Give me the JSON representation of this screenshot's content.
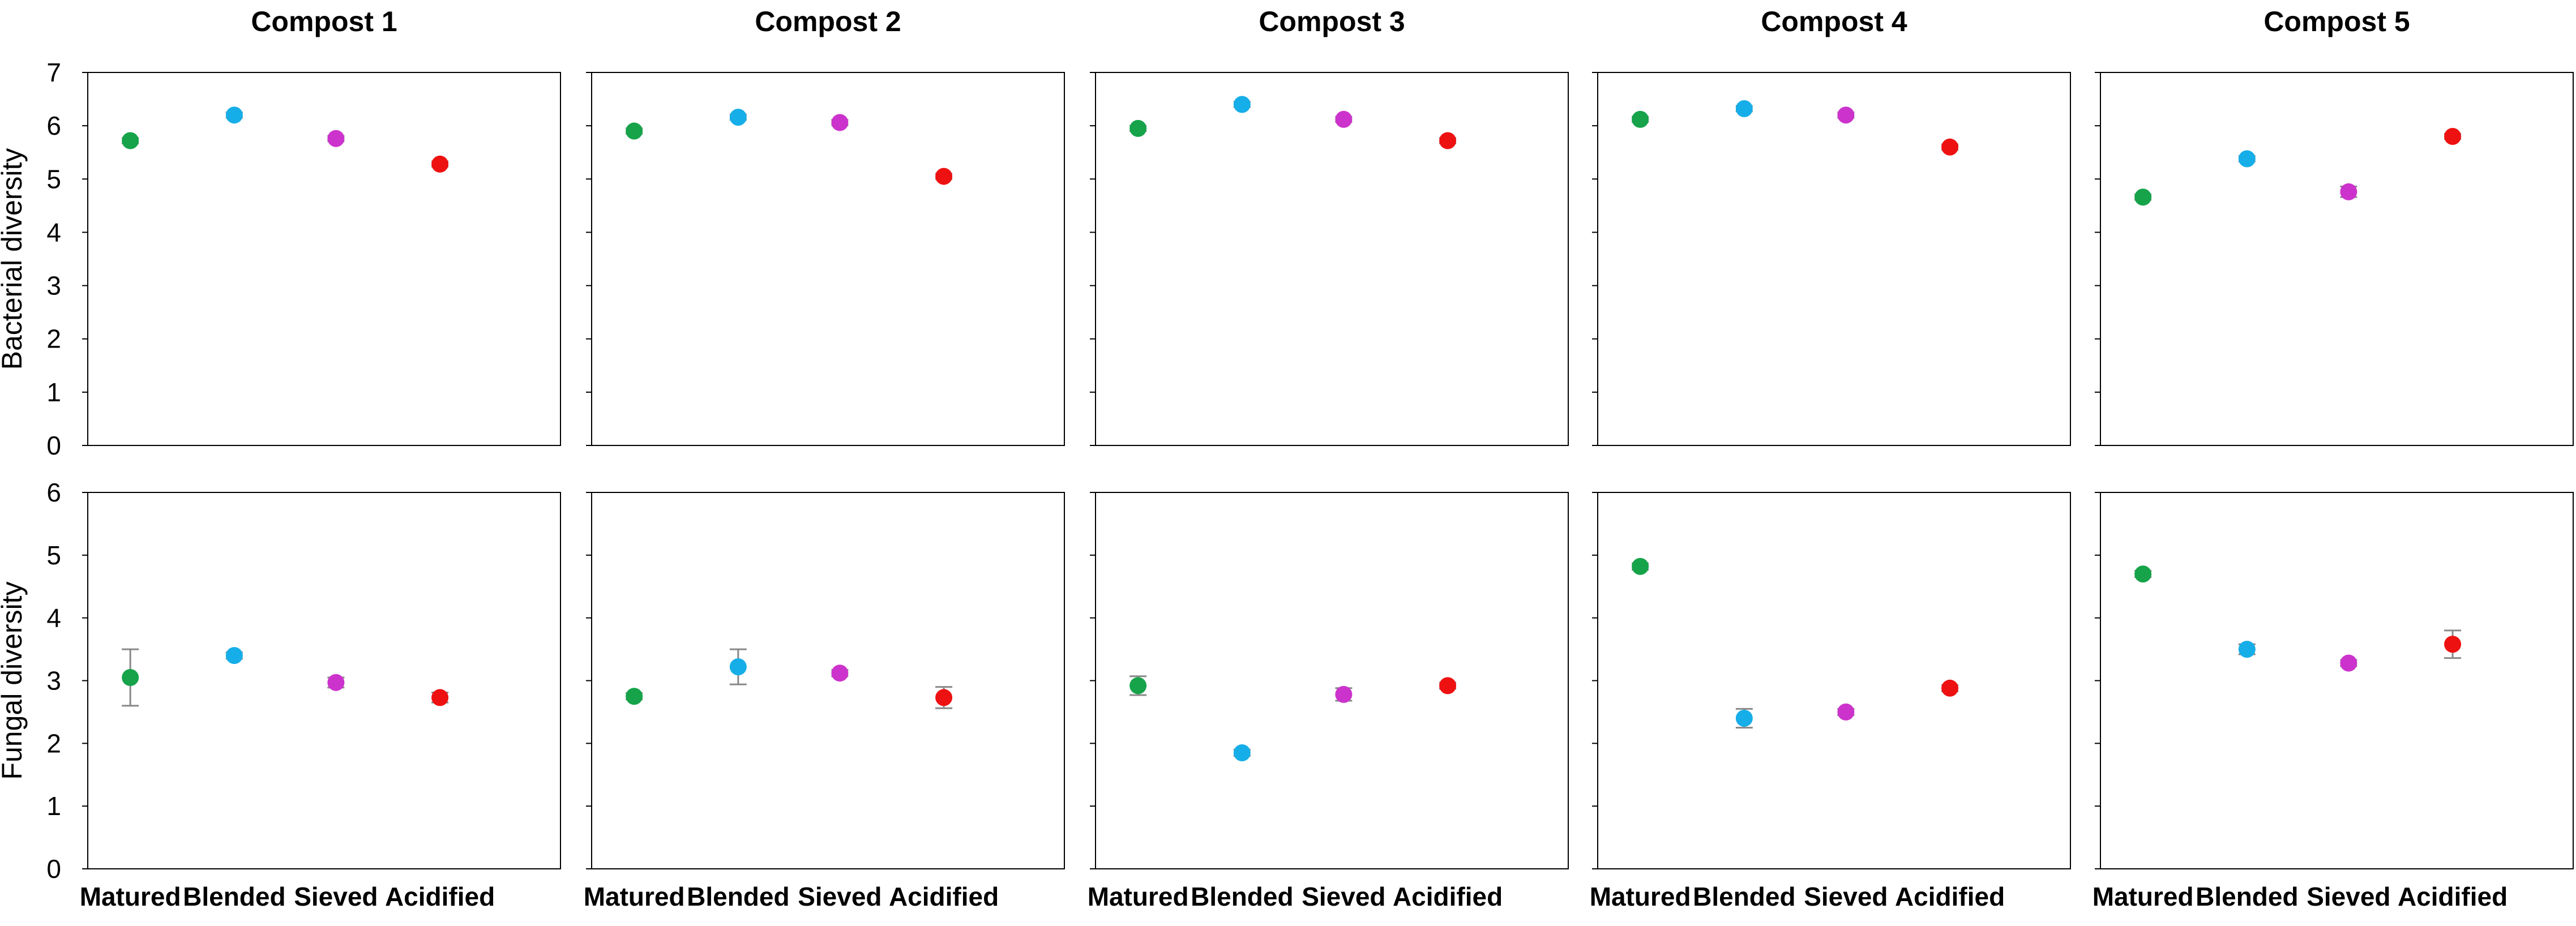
{
  "chart_data": {
    "type": "scatter",
    "columns": [
      "Compost 1",
      "Compost 2",
      "Compost 3",
      "Compost 4",
      "Compost 5"
    ],
    "categories": [
      "Matured",
      "Blended",
      "Sieved",
      "Acidified"
    ],
    "category_colors": [
      "#16a34a",
      "#16aee8",
      "#cc33cc",
      "#ee1111"
    ],
    "rows": [
      {
        "ylabel": "Bacterial diversity",
        "ylim": [
          0,
          7
        ],
        "yticks": [
          "0",
          "1",
          "2",
          "3",
          "4",
          "5",
          "6",
          "7"
        ],
        "values": [
          [
            5.72,
            6.2,
            5.76,
            5.28
          ],
          [
            5.9,
            6.16,
            6.06,
            5.05
          ],
          [
            5.95,
            6.4,
            6.12,
            5.72
          ],
          [
            6.12,
            6.32,
            6.2,
            5.6
          ],
          [
            4.66,
            5.38,
            4.76,
            5.8
          ]
        ],
        "errors": [
          [
            0.05,
            0.05,
            0.05,
            0.05
          ],
          [
            0.05,
            0.05,
            0.05,
            0.05
          ],
          [
            0.05,
            0.05,
            0.05,
            0.05
          ],
          [
            0.05,
            0.05,
            0.05,
            0.05
          ],
          [
            0.05,
            0.05,
            0.1,
            0.05
          ]
        ]
      },
      {
        "ylabel": "Fungal diversity",
        "ylim": [
          0,
          6
        ],
        "yticks": [
          "0",
          "1",
          "2",
          "3",
          "4",
          "5",
          "6"
        ],
        "values": [
          [
            3.05,
            3.4,
            2.97,
            2.73
          ],
          [
            2.75,
            3.22,
            3.12,
            2.73
          ],
          [
            2.92,
            1.85,
            2.78,
            2.92
          ],
          [
            4.82,
            2.4,
            2.5,
            2.88
          ],
          [
            4.7,
            3.5,
            3.28,
            3.58
          ]
        ],
        "errors": [
          [
            0.45,
            0.05,
            0.08,
            0.08
          ],
          [
            0.05,
            0.28,
            0.05,
            0.17
          ],
          [
            0.15,
            0.05,
            0.1,
            0.05
          ],
          [
            0.05,
            0.15,
            0.05,
            0.05
          ],
          [
            0.05,
            0.08,
            0.05,
            0.22
          ]
        ]
      }
    ],
    "grid": false,
    "legend": "none"
  }
}
